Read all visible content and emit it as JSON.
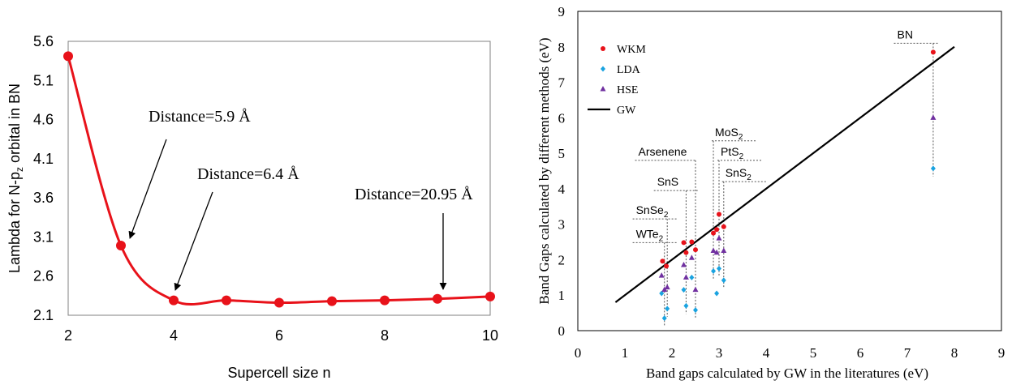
{
  "chart_data": [
    {
      "type": "line",
      "title": "",
      "xlabel": "Supercell size n",
      "ylabel_prefix": "Lambda for N-p",
      "ylabel_sub": "z",
      "ylabel_suffix": " orbital in BN",
      "xlim": [
        2,
        10
      ],
      "ylim": [
        2.1,
        5.6
      ],
      "xticks": [
        "2",
        "4",
        "6",
        "8",
        "10"
      ],
      "yticks": [
        "2.1",
        "2.6",
        "3.1",
        "3.6",
        "4.1",
        "4.6",
        "5.1",
        "5.6"
      ],
      "series": [
        {
          "name": "Lambda",
          "color": "#e8121a",
          "x": [
            2,
            3,
            4,
            5,
            6,
            7,
            8,
            9,
            10
          ],
          "y": [
            5.41,
            2.99,
            2.29,
            2.29,
            2.26,
            2.28,
            2.29,
            2.31,
            2.34
          ]
        }
      ],
      "annotations": [
        {
          "text": "Distance=5.9 Å",
          "target_x": 3,
          "target_y": 2.99
        },
        {
          "text": "Distance=6.4 Å",
          "target_x": 4,
          "target_y": 2.29
        },
        {
          "text": "Distance=20.95 Å",
          "target_x": 9,
          "target_y": 2.31
        }
      ]
    },
    {
      "type": "scatter",
      "title": "",
      "xlabel": "Band gaps calculated by GW in the literatures (eV)",
      "ylabel": "Band Gaps calculated by different methods (eV)",
      "xlim": [
        0,
        9
      ],
      "ylim": [
        0,
        9
      ],
      "xticks": [
        "0",
        "1",
        "2",
        "3",
        "4",
        "5",
        "6",
        "7",
        "8",
        "9"
      ],
      "yticks": [
        "0",
        "1",
        "2",
        "3",
        "4",
        "5",
        "6",
        "7",
        "8",
        "9"
      ],
      "legend": {
        "placement": "top-left",
        "entries": [
          {
            "label": "WKM",
            "color": "#e8121a",
            "marker": "circle"
          },
          {
            "label": "LDA",
            "color": "#1aa3e0",
            "marker": "diamond"
          },
          {
            "label": "HSE",
            "color": "#7030a0",
            "marker": "triangle"
          },
          {
            "label": "GW",
            "color": "#000000",
            "marker": "line"
          }
        ]
      },
      "gw_line": {
        "x": [
          0.8,
          8.0
        ],
        "y": [
          0.8,
          8.0
        ]
      },
      "series": [
        {
          "name": "WKM",
          "points": [
            {
              "x": 1.8,
              "y": 1.96
            },
            {
              "x": 1.88,
              "y": 1.82
            },
            {
              "x": 2.25,
              "y": 2.48
            },
            {
              "x": 2.3,
              "y": 2.2
            },
            {
              "x": 2.42,
              "y": 2.5
            },
            {
              "x": 2.5,
              "y": 2.28
            },
            {
              "x": 2.88,
              "y": 2.75
            },
            {
              "x": 2.95,
              "y": 2.85
            },
            {
              "x": 3.0,
              "y": 3.28
            },
            {
              "x": 3.1,
              "y": 2.93
            },
            {
              "x": 7.55,
              "y": 7.85
            }
          ]
        },
        {
          "name": "LDA",
          "points": [
            {
              "x": 1.78,
              "y": 1.05
            },
            {
              "x": 1.84,
              "y": 0.35
            },
            {
              "x": 1.9,
              "y": 0.62
            },
            {
              "x": 2.25,
              "y": 1.15
            },
            {
              "x": 2.3,
              "y": 0.7
            },
            {
              "x": 2.42,
              "y": 1.5
            },
            {
              "x": 2.5,
              "y": 0.58
            },
            {
              "x": 2.88,
              "y": 1.68
            },
            {
              "x": 2.95,
              "y": 1.05
            },
            {
              "x": 3.0,
              "y": 1.75
            },
            {
              "x": 3.1,
              "y": 1.42
            },
            {
              "x": 7.55,
              "y": 4.57
            }
          ]
        },
        {
          "name": "HSE",
          "points": [
            {
              "x": 1.78,
              "y": 1.55
            },
            {
              "x": 1.84,
              "y": 1.15
            },
            {
              "x": 1.9,
              "y": 1.22
            },
            {
              "x": 2.25,
              "y": 1.85
            },
            {
              "x": 2.3,
              "y": 1.5
            },
            {
              "x": 2.42,
              "y": 2.05
            },
            {
              "x": 2.5,
              "y": 1.15
            },
            {
              "x": 2.88,
              "y": 2.25
            },
            {
              "x": 2.95,
              "y": 2.2
            },
            {
              "x": 3.0,
              "y": 2.6
            },
            {
              "x": 3.1,
              "y": 2.25
            },
            {
              "x": 7.55,
              "y": 6.0
            }
          ]
        }
      ],
      "materials": [
        {
          "name": "WTe",
          "sub": "2",
          "x": 1.84,
          "label_y": 2.48,
          "label_x": 1.2
        },
        {
          "name": "SnSe",
          "sub": "2",
          "x": 1.9,
          "label_y": 3.15,
          "label_x": 1.2
        },
        {
          "name": "SnS",
          "sub": "",
          "x": 2.3,
          "label_y": 3.95,
          "label_x": 1.65
        },
        {
          "name": "Arsenene",
          "sub": "",
          "x": 2.5,
          "label_y": 4.8,
          "label_x": 1.25
        },
        {
          "name": "MoS",
          "sub": "2",
          "x": 2.88,
          "label_y": 5.35,
          "label_x": 2.88
        },
        {
          "name": "PtS",
          "sub": "2",
          "x": 3.0,
          "label_y": 4.8,
          "label_x": 3.0
        },
        {
          "name": "SnS",
          "sub": "2",
          "x": 3.1,
          "label_y": 4.2,
          "label_x": 3.1
        },
        {
          "name": "BN",
          "sub": "",
          "x": 7.55,
          "label_y": 8.1,
          "label_x": 6.75
        }
      ]
    }
  ]
}
